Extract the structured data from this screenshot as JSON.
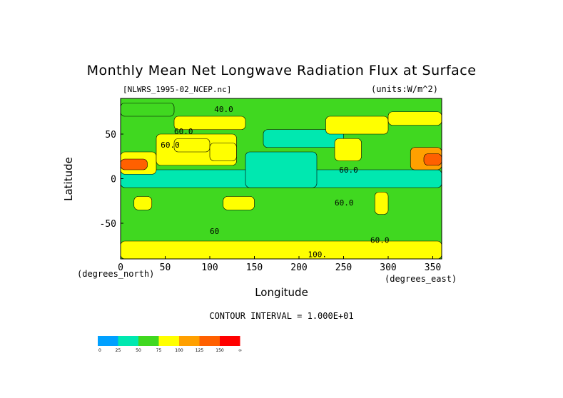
{
  "chart_data": {
    "type": "heatmap",
    "title": "Monthly Mean Net Longwave Radiation Flux at Surface",
    "dataset_label": "[NLWRS_1995-02_NCEP.nc]",
    "units_label": "(units:W/m^2)",
    "xlabel": "Longitude",
    "ylabel": "Latitude",
    "x_unit_label": "(degrees_east)",
    "y_unit_label": "(degrees_north)",
    "xlim": [
      0,
      360
    ],
    "ylim": [
      -90,
      90
    ],
    "x_ticks": [
      0,
      50,
      100,
      150,
      200,
      250,
      300,
      350
    ],
    "y_ticks": [
      50,
      0,
      -50
    ],
    "contour_interval_text": "CONTOUR INTERVAL = 1.000E+01",
    "contour_labels": [
      "40.0",
      "60.0",
      "60.0",
      "60.0",
      "60",
      "60.0",
      "60.0",
      "100."
    ],
    "colorbar": {
      "ticks": [
        "0",
        "25",
        "50",
        "75",
        "100",
        "125",
        "150",
        "∞"
      ],
      "colors": [
        "#00a0ff",
        "#00e8b0",
        "#40d820",
        "#ffff00",
        "#ffa000",
        "#ff6000",
        "#ff0000"
      ]
    },
    "regions": [
      {
        "lon": [
          0,
          360
        ],
        "lat": [
          -90,
          90
        ],
        "value": 50
      },
      {
        "lon": [
          0,
          360
        ],
        "lat": [
          -10,
          10
        ],
        "value": 40
      },
      {
        "lon": [
          140,
          220
        ],
        "lat": [
          -10,
          30
        ],
        "value": 35
      },
      {
        "lon": [
          160,
          250
        ],
        "lat": [
          35,
          55
        ],
        "value": 35
      },
      {
        "lon": [
          0,
          40
        ],
        "lat": [
          5,
          30
        ],
        "value": 90
      },
      {
        "lon": [
          0,
          30
        ],
        "lat": [
          10,
          22
        ],
        "value": 130
      },
      {
        "lon": [
          40,
          130
        ],
        "lat": [
          15,
          50
        ],
        "value": 80
      },
      {
        "lon": [
          60,
          100
        ],
        "lat": [
          30,
          45
        ],
        "value": 95
      },
      {
        "lon": [
          100,
          130
        ],
        "lat": [
          20,
          40
        ],
        "value": 85
      },
      {
        "lon": [
          240,
          270
        ],
        "lat": [
          20,
          45
        ],
        "value": 85
      },
      {
        "lon": [
          325,
          360
        ],
        "lat": [
          10,
          35
        ],
        "value": 100
      },
      {
        "lon": [
          340,
          360
        ],
        "lat": [
          15,
          28
        ],
        "value": 130
      },
      {
        "lon": [
          115,
          150
        ],
        "lat": [
          -35,
          -20
        ],
        "value": 95
      },
      {
        "lon": [
          15,
          35
        ],
        "lat": [
          -35,
          -20
        ],
        "value": 90
      },
      {
        "lon": [
          285,
          300
        ],
        "lat": [
          -40,
          -15
        ],
        "value": 95
      },
      {
        "lon": [
          0,
          360
        ],
        "lat": [
          -90,
          -70
        ],
        "value": 85
      },
      {
        "lon": [
          0,
          60
        ],
        "lat": [
          70,
          85
        ],
        "value": 70
      },
      {
        "lon": [
          60,
          140
        ],
        "lat": [
          55,
          70
        ],
        "value": 75
      },
      {
        "lon": [
          230,
          300
        ],
        "lat": [
          50,
          70
        ],
        "value": 75
      },
      {
        "lon": [
          300,
          360
        ],
        "lat": [
          60,
          75
        ],
        "value": 80
      }
    ]
  }
}
